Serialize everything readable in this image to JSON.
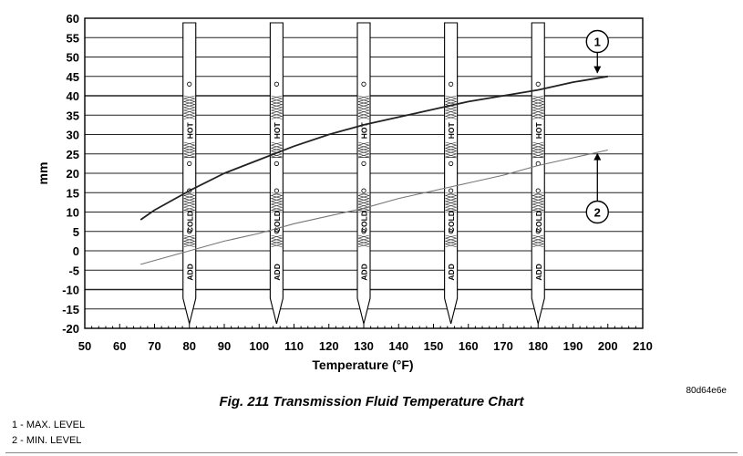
{
  "chart_data": {
    "type": "line",
    "xlabel": "Temperature (°F)",
    "ylabel": "mm",
    "xlim": [
      50,
      210
    ],
    "ylim": [
      -20,
      60
    ],
    "xticks": [
      50,
      60,
      70,
      80,
      90,
      100,
      110,
      120,
      130,
      140,
      150,
      160,
      170,
      180,
      190,
      200,
      210
    ],
    "yticks": [
      60,
      55,
      50,
      45,
      40,
      35,
      30,
      25,
      20,
      15,
      10,
      5,
      0,
      -5,
      -10,
      -15,
      -20
    ],
    "grid": "horizontal",
    "series": [
      {
        "name": "1",
        "x": [
          66,
          70,
          80,
          90,
          100,
          110,
          120,
          130,
          140,
          150,
          160,
          170,
          180,
          190,
          200
        ],
        "y": [
          8,
          10.5,
          15.5,
          20,
          23.5,
          27,
          30,
          32.5,
          34.5,
          36.5,
          38.5,
          40,
          41.5,
          43.5,
          45
        ]
      },
      {
        "name": "2",
        "x": [
          66,
          80,
          90,
          100,
          110,
          120,
          130,
          140,
          150,
          160,
          170,
          180,
          190,
          200
        ],
        "y": [
          -3.5,
          0,
          2.5,
          4.5,
          7,
          9,
          11,
          13.5,
          15.5,
          17.5,
          19.5,
          22,
          24,
          26
        ]
      }
    ],
    "dipstick_temperatures": [
      80,
      105,
      130,
      155,
      180
    ],
    "dipstick_labels": {
      "hot": "HOT",
      "cold": "COLD",
      "add": "ADD"
    },
    "callouts": [
      "1",
      "2"
    ]
  },
  "image_id": "80d64e6e",
  "caption": "Fig. 211 Transmission Fluid Temperature Chart",
  "legend": [
    "1 - MAX. LEVEL",
    "2 - MIN. LEVEL"
  ]
}
